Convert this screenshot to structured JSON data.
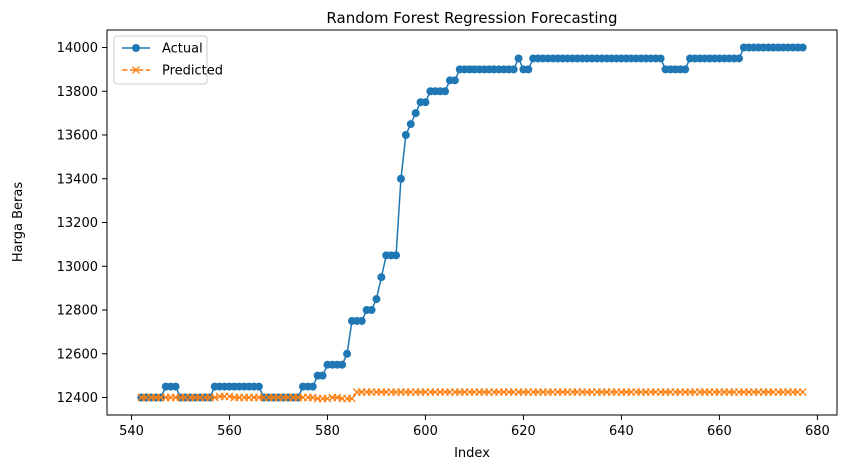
{
  "chart_data": {
    "type": "line",
    "title": "Random Forest Regression Forecasting",
    "xlabel": "Index",
    "ylabel": "Harga Beras",
    "xlim": [
      535,
      684
    ],
    "ylim": [
      12320,
      14080
    ],
    "xticks": [
      540,
      560,
      580,
      600,
      620,
      640,
      660,
      680
    ],
    "yticks": [
      12400,
      12600,
      12800,
      13000,
      13200,
      13400,
      13600,
      13800,
      14000
    ],
    "grid": false,
    "legend_position": "top-left",
    "x_start": 542,
    "series": [
      {
        "name": "Actual",
        "color": "#1f77b4",
        "marker": "circle",
        "linestyle": "solid",
        "values": [
          12400,
          12400,
          12400,
          12400,
          12400,
          12450,
          12450,
          12450,
          12400,
          12400,
          12400,
          12400,
          12400,
          12400,
          12400,
          12450,
          12450,
          12450,
          12450,
          12450,
          12450,
          12450,
          12450,
          12450,
          12450,
          12400,
          12400,
          12400,
          12400,
          12400,
          12400,
          12400,
          12400,
          12450,
          12450,
          12450,
          12500,
          12500,
          12550,
          12550,
          12550,
          12550,
          12600,
          12750,
          12750,
          12750,
          12800,
          12800,
          12850,
          12950,
          13050,
          13050,
          13050,
          13400,
          13600,
          13650,
          13700,
          13750,
          13750,
          13800,
          13800,
          13800,
          13800,
          13850,
          13850,
          13900,
          13900,
          13900,
          13900,
          13900,
          13900,
          13900,
          13900,
          13900,
          13900,
          13900,
          13900,
          13950,
          13900,
          13900,
          13950,
          13950,
          13950,
          13950,
          13950,
          13950,
          13950,
          13950,
          13950,
          13950,
          13950,
          13950,
          13950,
          13950,
          13950,
          13950,
          13950,
          13950,
          13950,
          13950,
          13950,
          13950,
          13950,
          13950,
          13950,
          13950,
          13950,
          13900,
          13900,
          13900,
          13900,
          13900,
          13950,
          13950,
          13950,
          13950,
          13950,
          13950,
          13950,
          13950,
          13950,
          13950,
          13950,
          14000,
          14000,
          14000,
          14000,
          14000,
          14000,
          14000,
          14000,
          14000,
          14000,
          14000,
          14000,
          14000
        ]
      },
      {
        "name": "Predicted",
        "color": "#ff7f0e",
        "marker": "x",
        "linestyle": "dashed",
        "values": [
          12400,
          12400,
          12400,
          12400,
          12400,
          12400,
          12400,
          12400,
          12400,
          12400,
          12400,
          12400,
          12400,
          12400,
          12400,
          12400,
          12405,
          12405,
          12405,
          12400,
          12400,
          12400,
          12400,
          12400,
          12400,
          12400,
          12400,
          12400,
          12400,
          12400,
          12400,
          12400,
          12400,
          12400,
          12400,
          12400,
          12395,
          12395,
          12395,
          12400,
          12400,
          12395,
          12395,
          12395,
          12425,
          12425,
          12425,
          12425,
          12425,
          12425,
          12425,
          12425,
          12425,
          12425,
          12425,
          12425,
          12425,
          12425,
          12425,
          12425,
          12425,
          12425,
          12425,
          12425,
          12425,
          12425,
          12425,
          12425,
          12425,
          12425,
          12425,
          12425,
          12425,
          12425,
          12425,
          12425,
          12425,
          12425,
          12425,
          12425,
          12425,
          12425,
          12425,
          12425,
          12425,
          12425,
          12425,
          12425,
          12425,
          12425,
          12425,
          12425,
          12425,
          12425,
          12425,
          12425,
          12425,
          12425,
          12425,
          12425,
          12425,
          12425,
          12425,
          12425,
          12425,
          12425,
          12425,
          12425,
          12425,
          12425,
          12425,
          12425,
          12425,
          12425,
          12425,
          12425,
          12425,
          12425,
          12425,
          12425,
          12425,
          12425,
          12425,
          12425,
          12425,
          12425,
          12425,
          12425,
          12425,
          12425,
          12425,
          12425,
          12425,
          12425,
          12425,
          12425
        ]
      }
    ]
  }
}
